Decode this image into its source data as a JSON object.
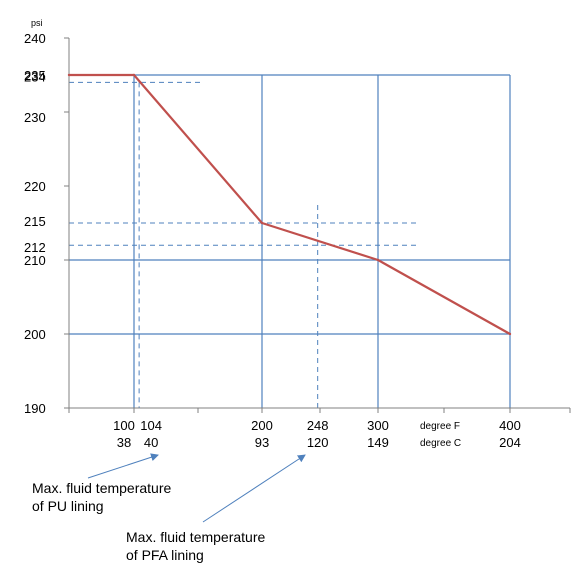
{
  "chart_data": {
    "type": "line",
    "title": "",
    "y_unit": "psi",
    "ylim": [
      190,
      240
    ],
    "y_ticks": [
      190,
      200,
      210,
      212,
      215,
      220,
      230,
      234,
      235,
      240
    ],
    "xlim": [
      50,
      420
    ],
    "x_ticks_F": [
      100,
      104,
      200,
      248,
      300,
      400
    ],
    "x_ticks_C": [
      38,
      40,
      93,
      120,
      149,
      204
    ],
    "x_label_F": "degree F",
    "x_label_C": "degree C",
    "grid": "vertical lines at 100, 200, 300, 400 °F; horizontal lines at 200, 210, 235 psi",
    "series": [
      {
        "color": "#c0504d",
        "x": [
          50,
          100,
          200,
          300,
          400
        ],
        "y": [
          235,
          235,
          215,
          210,
          200
        ]
      }
    ],
    "reference_lines": [
      {
        "x": 104,
        "y": 234,
        "color": "#4f81bd"
      },
      {
        "x": 248,
        "y": 212,
        "color": "#4f81bd"
      }
    ],
    "extra_dashed_levels": [
      215
    ],
    "annotations": [
      {
        "lines": [
          "Max. fluid temperature",
          "of PU lining"
        ],
        "points_to_F": 104
      },
      {
        "lines": [
          "Max. fluid temperature",
          "of PFA lining"
        ],
        "points_to_F": 248
      }
    ]
  }
}
